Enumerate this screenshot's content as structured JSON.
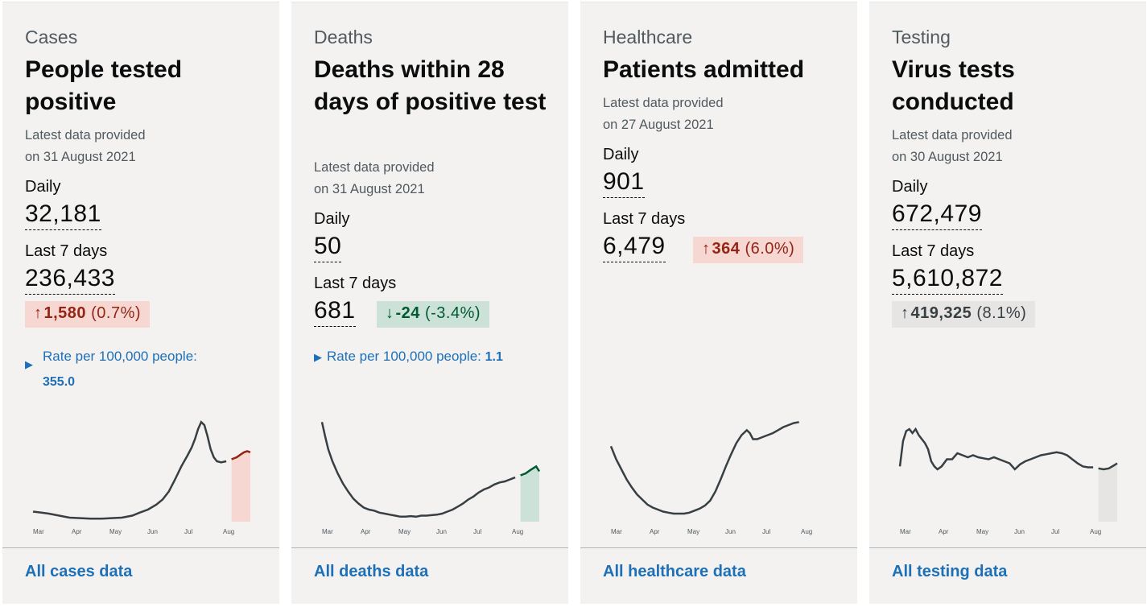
{
  "cards": [
    {
      "category": "Cases",
      "headline": "People tested positive",
      "latest_line1": "Latest data provided",
      "latest_line2": "on 31 August 2021",
      "daily_label": "Daily",
      "daily_value": "32,181",
      "week_label": "Last 7 days",
      "week_value": "236,433",
      "change_value": "1,580",
      "change_pct": "(0.7%)",
      "change_direction": "up",
      "change_status": "red",
      "rate_label": "Rate per 100,000 people:",
      "rate_value": "355.0",
      "link": "All cases data"
    },
    {
      "category": "Deaths",
      "headline": "Deaths within 28 days of positive test",
      "latest_line1": "Latest data provided",
      "latest_line2": "on 31 August 2021",
      "daily_label": "Daily",
      "daily_value": "50",
      "week_label": "Last 7 days",
      "week_value": "681",
      "change_value": "-24",
      "change_pct": "(-3.4%)",
      "change_direction": "down",
      "change_status": "green",
      "rate_label": "Rate per 100,000 people:",
      "rate_value": "1.1",
      "link": "All deaths data"
    },
    {
      "category": "Healthcare",
      "headline": "Patients admitted",
      "latest_line1": "Latest data provided",
      "latest_line2": "on 27 August 2021",
      "daily_label": "Daily",
      "daily_value": "901",
      "week_label": "Last 7 days",
      "week_value": "6,479",
      "change_value": "364",
      "change_pct": "(6.0%)",
      "change_direction": "up",
      "change_status": "red",
      "link": "All healthcare data"
    },
    {
      "category": "Testing",
      "headline": "Virus tests conducted",
      "latest_line1": "Latest data provided",
      "latest_line2": "on 30 August 2021",
      "daily_label": "Daily",
      "daily_value": "672,479",
      "week_label": "Last 7 days",
      "week_value": "5,610,872",
      "change_value": "419,325",
      "change_pct": "(8.1%)",
      "change_direction": "up",
      "change_status": "grey",
      "link": "All testing data"
    }
  ],
  "chart_data": [
    {
      "type": "line",
      "x_ticks": [
        "Mar",
        "Apr",
        "May",
        "Jun",
        "Jul",
        "Aug"
      ],
      "trend_color": "#942514",
      "shade_color": "#f6d7d2",
      "series": [
        {
          "values": [
            [
              0,
              0.1
            ],
            [
              8,
              0.09
            ],
            [
              15,
              0.08
            ],
            [
              25,
              0.06
            ],
            [
              35,
              0.04
            ],
            [
              45,
              0.035
            ],
            [
              55,
              0.03
            ],
            [
              65,
              0.03
            ],
            [
              75,
              0.035
            ],
            [
              85,
              0.04
            ],
            [
              95,
              0.06
            ],
            [
              102,
              0.09
            ],
            [
              110,
              0.12
            ],
            [
              118,
              0.17
            ],
            [
              124,
              0.22
            ],
            [
              130,
              0.3
            ],
            [
              136,
              0.42
            ],
            [
              142,
              0.55
            ],
            [
              148,
              0.66
            ],
            [
              152,
              0.74
            ],
            [
              155,
              0.82
            ],
            [
              158,
              0.92
            ],
            [
              161,
              0.99
            ],
            [
              164,
              0.96
            ],
            [
              167,
              0.85
            ],
            [
              170,
              0.72
            ],
            [
              173,
              0.64
            ],
            [
              176,
              0.6
            ],
            [
              180,
              0.59
            ],
            [
              185,
              0.6
            ],
            [
              190,
              0.62
            ],
            [
              195,
              0.64
            ],
            [
              199,
              0.67
            ],
            [
              202,
              0.69
            ],
            [
              205,
              0.7
            ],
            [
              208,
              0.69
            ]
          ]
        }
      ]
    },
    {
      "type": "line",
      "x_ticks": [
        "Mar",
        "Apr",
        "May",
        "Jun",
        "Jul",
        "Aug"
      ],
      "trend_color": "#005a30",
      "shade_color": "#cce2d8",
      "series": [
        {
          "values": [
            [
              0,
              0.99
            ],
            [
              3,
              0.85
            ],
            [
              6,
              0.72
            ],
            [
              10,
              0.6
            ],
            [
              15,
              0.48
            ],
            [
              20,
              0.38
            ],
            [
              25,
              0.3
            ],
            [
              30,
              0.23
            ],
            [
              35,
              0.18
            ],
            [
              40,
              0.14
            ],
            [
              45,
              0.12
            ],
            [
              50,
              0.11
            ],
            [
              55,
              0.09
            ],
            [
              60,
              0.08
            ],
            [
              65,
              0.07
            ],
            [
              70,
              0.06
            ],
            [
              75,
              0.05
            ],
            [
              80,
              0.05
            ],
            [
              85,
              0.055
            ],
            [
              90,
              0.05
            ],
            [
              95,
              0.06
            ],
            [
              100,
              0.06
            ],
            [
              105,
              0.065
            ],
            [
              110,
              0.07
            ],
            [
              115,
              0.08
            ],
            [
              120,
              0.1
            ],
            [
              125,
              0.12
            ],
            [
              130,
              0.15
            ],
            [
              135,
              0.18
            ],
            [
              140,
              0.22
            ],
            [
              145,
              0.25
            ],
            [
              150,
              0.29
            ],
            [
              155,
              0.32
            ],
            [
              160,
              0.34
            ],
            [
              165,
              0.37
            ],
            [
              170,
              0.39
            ],
            [
              175,
              0.4
            ],
            [
              180,
              0.42
            ],
            [
              185,
              0.44
            ],
            [
              190,
              0.46
            ],
            [
              195,
              0.48
            ],
            [
              199,
              0.51
            ],
            [
              202,
              0.53
            ],
            [
              205,
              0.55
            ],
            [
              208,
              0.5
            ]
          ]
        }
      ]
    },
    {
      "type": "line",
      "x_ticks": [
        "Mar",
        "Apr",
        "May",
        "Jun",
        "Jul",
        "Aug"
      ],
      "trend_color": "#942514",
      "shade_color": "#f6d7d2",
      "series": [
        {
          "values": [
            [
              0,
              0.75
            ],
            [
              5,
              0.62
            ],
            [
              10,
              0.52
            ],
            [
              15,
              0.42
            ],
            [
              20,
              0.34
            ],
            [
              25,
              0.27
            ],
            [
              30,
              0.22
            ],
            [
              35,
              0.17
            ],
            [
              40,
              0.14
            ],
            [
              45,
              0.12
            ],
            [
              50,
              0.1
            ],
            [
              55,
              0.09
            ],
            [
              60,
              0.08
            ],
            [
              65,
              0.08
            ],
            [
              70,
              0.08
            ],
            [
              75,
              0.09
            ],
            [
              80,
              0.11
            ],
            [
              85,
              0.13
            ],
            [
              90,
              0.16
            ],
            [
              95,
              0.21
            ],
            [
              100,
              0.3
            ],
            [
              105,
              0.42
            ],
            [
              110,
              0.55
            ],
            [
              115,
              0.67
            ],
            [
              120,
              0.78
            ],
            [
              125,
              0.86
            ],
            [
              130,
              0.91
            ],
            [
              133,
              0.88
            ],
            [
              136,
              0.82
            ],
            [
              140,
              0.82
            ],
            [
              145,
              0.84
            ],
            [
              150,
              0.86
            ],
            [
              155,
              0.88
            ],
            [
              160,
              0.91
            ],
            [
              165,
              0.94
            ],
            [
              170,
              0.96
            ],
            [
              175,
              0.98
            ],
            [
              180,
              0.99
            ]
          ]
        }
      ]
    },
    {
      "type": "line",
      "x_ticks": [
        "Mar",
        "Apr",
        "May",
        "Jun",
        "Jul",
        "Aug"
      ],
      "trend_color": "#383f43",
      "shade_color": "#e6e5e4",
      "series": [
        {
          "values": [
            [
              0,
              0.55
            ],
            [
              3,
              0.8
            ],
            [
              6,
              0.9
            ],
            [
              9,
              0.92
            ],
            [
              12,
              0.88
            ],
            [
              15,
              0.92
            ],
            [
              18,
              0.86
            ],
            [
              21,
              0.82
            ],
            [
              24,
              0.78
            ],
            [
              27,
              0.72
            ],
            [
              30,
              0.6
            ],
            [
              33,
              0.55
            ],
            [
              36,
              0.52
            ],
            [
              40,
              0.55
            ],
            [
              45,
              0.62
            ],
            [
              50,
              0.62
            ],
            [
              55,
              0.68
            ],
            [
              60,
              0.66
            ],
            [
              65,
              0.64
            ],
            [
              70,
              0.66
            ],
            [
              75,
              0.64
            ],
            [
              80,
              0.63
            ],
            [
              85,
              0.62
            ],
            [
              90,
              0.64
            ],
            [
              95,
              0.62
            ],
            [
              100,
              0.6
            ],
            [
              105,
              0.58
            ],
            [
              110,
              0.52
            ],
            [
              115,
              0.57
            ],
            [
              120,
              0.6
            ],
            [
              125,
              0.62
            ],
            [
              130,
              0.64
            ],
            [
              135,
              0.66
            ],
            [
              140,
              0.67
            ],
            [
              145,
              0.68
            ],
            [
              150,
              0.69
            ],
            [
              155,
              0.68
            ],
            [
              160,
              0.66
            ],
            [
              165,
              0.62
            ],
            [
              170,
              0.58
            ],
            [
              175,
              0.55
            ],
            [
              180,
              0.54
            ],
            [
              185,
              0.54
            ],
            [
              190,
              0.53
            ],
            [
              195,
              0.52
            ],
            [
              200,
              0.53
            ],
            [
              205,
              0.56
            ],
            [
              208,
              0.58
            ]
          ]
        }
      ]
    }
  ]
}
